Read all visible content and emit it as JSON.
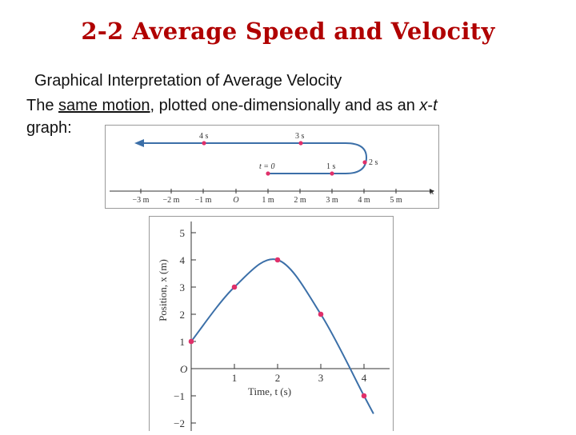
{
  "slide": {
    "title": "2-2 Average Speed and Velocity",
    "subtitle": "Graphical Interpretation of Average Velocity",
    "body_pre": "The ",
    "body_underlined": "same motion",
    "body_mid": ", plotted one-dimensionally and as an ",
    "body_x": "x",
    "body_dash": "-",
    "body_t": "t",
    "body_line2": "graph:"
  },
  "motion_diagram": {
    "axis_label": "x",
    "ticks": [
      "−3 m",
      "−2 m",
      "−1 m",
      "O",
      "1 m",
      "2 m",
      "3 m",
      "4 m",
      "5 m"
    ],
    "time_labels": [
      "t = 0",
      "1 s",
      "2 s",
      "3 s",
      "4 s"
    ],
    "path_color": "#3b6fa8",
    "point_color": "#e0306a"
  },
  "chart_data": {
    "type": "line",
    "xlabel": "Time, t (s)",
    "ylabel": "Position, x (m)",
    "origin_label": "O",
    "xlim": [
      0,
      4.3
    ],
    "ylim": [
      -2,
      5
    ],
    "x_ticks": [
      1,
      2,
      3,
      4
    ],
    "x_tick_labels": [
      "1",
      "2",
      "3",
      "4"
    ],
    "y_ticks": [
      5,
      4,
      3,
      2,
      1,
      -1,
      -2
    ],
    "y_tick_labels": [
      "5",
      "4",
      "3",
      "2",
      "1",
      "−1",
      "−2"
    ],
    "points": [
      {
        "t": 0,
        "x": 1
      },
      {
        "t": 1,
        "x": 3
      },
      {
        "t": 2,
        "x": 4
      },
      {
        "t": 3,
        "x": 2
      },
      {
        "t": 4,
        "x": -1
      }
    ],
    "curve_color": "#3b6fa8",
    "point_color": "#e0306a"
  }
}
